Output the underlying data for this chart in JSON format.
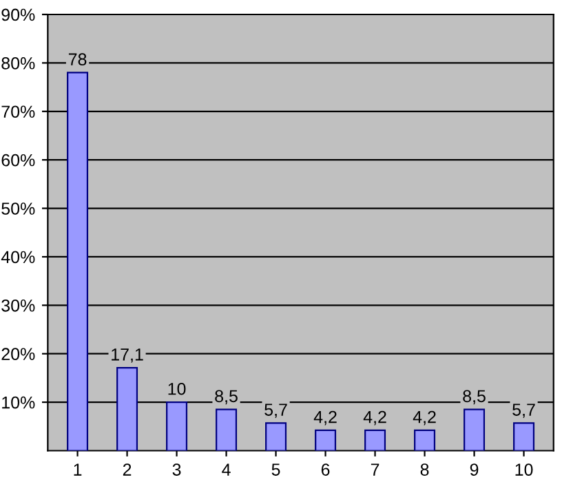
{
  "chart_data": {
    "type": "bar",
    "categories": [
      "1",
      "2",
      "3",
      "4",
      "5",
      "6",
      "7",
      "8",
      "9",
      "10"
    ],
    "values": [
      78,
      17.1,
      10,
      8.5,
      5.7,
      4.2,
      4.2,
      4.2,
      8.5,
      5.7
    ],
    "value_labels": [
      "78",
      "17,1",
      "10",
      "8,5",
      "5,7",
      "4,2",
      "4,2",
      "4,2",
      "8,5",
      "5,7"
    ],
    "color": "#9999ff",
    "ylim": [
      0,
      90
    ],
    "yticks": [
      {
        "value": 10,
        "label": "10%"
      },
      {
        "value": 20,
        "label": "20%"
      },
      {
        "value": 30,
        "label": "30%"
      },
      {
        "value": 40,
        "label": "40%"
      },
      {
        "value": 50,
        "label": "50%"
      },
      {
        "value": 60,
        "label": "60%"
      },
      {
        "value": 70,
        "label": "70%"
      },
      {
        "value": 80,
        "label": "80%"
      },
      {
        "value": 90,
        "label": "90%"
      }
    ],
    "grid": "y",
    "legend": false
  }
}
